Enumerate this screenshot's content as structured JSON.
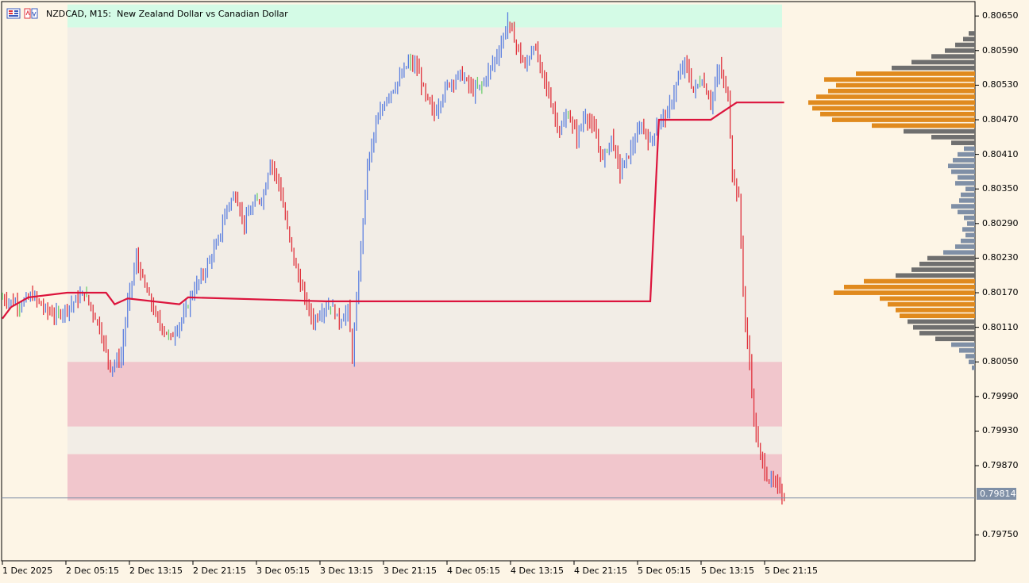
{
  "header": {
    "symbol_timeframe": "NZDCAD, M15:",
    "description": "New Zealand Dollar vs Canadian Dollar",
    "icons": [
      "market-depth-icon",
      "one-click-trading-icon"
    ]
  },
  "colors": {
    "background": "#fdf5e6",
    "bull_candle": "#5b7fe0",
    "bear_candle": "#e0323c",
    "doji_candle": "#6fcf6f",
    "poc_line": "#dc143c",
    "value_area_band": "#f2ede6",
    "demand_zone": "#d4fbe6",
    "supply_zone": "#f1c6cc",
    "profile_gray": "#6f6f6f",
    "profile_orange": "#e08a1e",
    "profile_blue": "#7f8fa6"
  },
  "price_axis": {
    "labels": [
      "0.80650",
      "0.80590",
      "0.80530",
      "0.80470",
      "0.80410",
      "0.80350",
      "0.80290",
      "0.80230",
      "0.80170",
      "0.80110",
      "0.80050",
      "0.79990",
      "0.79930",
      "0.79870",
      "0.79750"
    ],
    "current_price": "0.79814"
  },
  "time_axis": {
    "labels": [
      "1 Dec 2025",
      "2 Dec 05:15",
      "2 Dec 13:15",
      "2 Dec 21:15",
      "3 Dec 05:15",
      "3 Dec 13:15",
      "3 Dec 21:15",
      "4 Dec 05:15",
      "4 Dec 13:15",
      "4 Dec 21:15",
      "5 Dec 05:15",
      "5 Dec 13:15",
      "5 Dec 21:15"
    ]
  },
  "chart_data": {
    "type": "candlestick",
    "symbol": "NZDCAD",
    "timeframe": "M15",
    "y_range": [
      0.79705,
      0.80675
    ],
    "current_price": 0.79814,
    "price_anchors": [
      [
        0,
        0.8016
      ],
      [
        8,
        0.8015
      ],
      [
        14,
        0.80165
      ],
      [
        20,
        0.8014
      ],
      [
        25,
        0.8013
      ],
      [
        32,
        0.8015
      ],
      [
        38,
        0.8017
      ],
      [
        45,
        0.8011
      ],
      [
        50,
        0.8004
      ],
      [
        55,
        0.8006
      ],
      [
        58,
        0.8015
      ],
      [
        62,
        0.8023
      ],
      [
        66,
        0.8018
      ],
      [
        72,
        0.8012
      ],
      [
        78,
        0.8009
      ],
      [
        84,
        0.8013
      ],
      [
        88,
        0.8017
      ],
      [
        94,
        0.8021
      ],
      [
        100,
        0.8026
      ],
      [
        104,
        0.8032
      ],
      [
        108,
        0.8034
      ],
      [
        112,
        0.8029
      ],
      [
        116,
        0.8032
      ],
      [
        121,
        0.8034
      ],
      [
        124,
        0.804
      ],
      [
        128,
        0.8036
      ],
      [
        132,
        0.8028
      ],
      [
        136,
        0.8021
      ],
      [
        140,
        0.8016
      ],
      [
        144,
        0.8012
      ],
      [
        148,
        0.8014
      ],
      [
        152,
        0.8015
      ],
      [
        156,
        0.8012
      ],
      [
        160,
        0.8014
      ],
      [
        162,
        0.8006
      ],
      [
        164,
        0.8015
      ],
      [
        166,
        0.8025
      ],
      [
        169,
        0.8039
      ],
      [
        173,
        0.8046
      ],
      [
        178,
        0.8051
      ],
      [
        184,
        0.8054
      ],
      [
        188,
        0.8057
      ],
      [
        192,
        0.8056
      ],
      [
        196,
        0.8051
      ],
      [
        200,
        0.8048
      ],
      [
        206,
        0.8053
      ],
      [
        212,
        0.8055
      ],
      [
        218,
        0.8052
      ],
      [
        222,
        0.8053
      ],
      [
        226,
        0.8056
      ],
      [
        230,
        0.8059
      ],
      [
        234,
        0.8064
      ],
      [
        238,
        0.806
      ],
      [
        242,
        0.8056
      ],
      [
        246,
        0.806
      ],
      [
        250,
        0.8055
      ],
      [
        254,
        0.805
      ],
      [
        258,
        0.8045
      ],
      [
        262,
        0.8048
      ],
      [
        266,
        0.8044
      ],
      [
        270,
        0.8048
      ],
      [
        274,
        0.8045
      ],
      [
        278,
        0.804
      ],
      [
        282,
        0.8044
      ],
      [
        286,
        0.8038
      ],
      [
        290,
        0.8041
      ],
      [
        296,
        0.8046
      ],
      [
        300,
        0.8043
      ],
      [
        304,
        0.8047
      ],
      [
        308,
        0.8048
      ],
      [
        312,
        0.8053
      ],
      [
        316,
        0.8057
      ],
      [
        320,
        0.8052
      ],
      [
        324,
        0.8054
      ],
      [
        328,
        0.805
      ],
      [
        332,
        0.8056
      ],
      [
        336,
        0.8051
      ],
      [
        338,
        0.8038
      ],
      [
        341,
        0.8033
      ],
      [
        344,
        0.8011
      ],
      [
        346,
        0.8005
      ],
      [
        348,
        0.7995
      ],
      [
        350,
        0.799
      ],
      [
        354,
        0.7985
      ],
      [
        360,
        0.7983
      ],
      [
        362,
        0.79814
      ]
    ],
    "volume_profile": [
      {
        "price": 0.8004,
        "volume": 4,
        "color": "profile_blue"
      },
      {
        "price": 0.8005,
        "volume": 8,
        "color": "profile_blue"
      },
      {
        "price": 0.8006,
        "volume": 12,
        "color": "profile_blue"
      },
      {
        "price": 0.8007,
        "volume": 20,
        "color": "profile_blue"
      },
      {
        "price": 0.8008,
        "volume": 30,
        "color": "profile_blue"
      },
      {
        "price": 0.8009,
        "volume": 50,
        "color": "profile_gray"
      },
      {
        "price": 0.801,
        "volume": 70,
        "color": "profile_gray"
      },
      {
        "price": 0.8011,
        "volume": 78,
        "color": "profile_gray"
      },
      {
        "price": 0.8012,
        "volume": 85,
        "color": "profile_gray"
      },
      {
        "price": 0.8013,
        "volume": 95,
        "color": "profile_orange"
      },
      {
        "price": 0.8014,
        "volume": 100,
        "color": "profile_orange"
      },
      {
        "price": 0.8015,
        "volume": 110,
        "color": "profile_orange"
      },
      {
        "price": 0.8016,
        "volume": 120,
        "color": "profile_orange"
      },
      {
        "price": 0.8017,
        "volume": 178,
        "color": "profile_orange"
      },
      {
        "price": 0.8018,
        "volume": 165,
        "color": "profile_orange"
      },
      {
        "price": 0.8019,
        "volume": 140,
        "color": "profile_orange"
      },
      {
        "price": 0.802,
        "volume": 100,
        "color": "profile_gray"
      },
      {
        "price": 0.8021,
        "volume": 80,
        "color": "profile_gray"
      },
      {
        "price": 0.8022,
        "volume": 70,
        "color": "profile_gray"
      },
      {
        "price": 0.8023,
        "volume": 60,
        "color": "profile_gray"
      },
      {
        "price": 0.8024,
        "volume": 40,
        "color": "profile_blue"
      },
      {
        "price": 0.8025,
        "volume": 25,
        "color": "profile_blue"
      },
      {
        "price": 0.8026,
        "volume": 18,
        "color": "profile_blue"
      },
      {
        "price": 0.8027,
        "volume": 12,
        "color": "profile_blue"
      },
      {
        "price": 0.8028,
        "volume": 16,
        "color": "profile_blue"
      },
      {
        "price": 0.8029,
        "volume": 10,
        "color": "profile_blue"
      },
      {
        "price": 0.803,
        "volume": 14,
        "color": "profile_blue"
      },
      {
        "price": 0.8031,
        "volume": 22,
        "color": "profile_blue"
      },
      {
        "price": 0.8032,
        "volume": 30,
        "color": "profile_blue"
      },
      {
        "price": 0.8033,
        "volume": 20,
        "color": "profile_blue"
      },
      {
        "price": 0.8034,
        "volume": 18,
        "color": "profile_blue"
      },
      {
        "price": 0.8035,
        "volume": 12,
        "color": "profile_blue"
      },
      {
        "price": 0.8036,
        "volume": 25,
        "color": "profile_blue"
      },
      {
        "price": 0.8037,
        "volume": 22,
        "color": "profile_blue"
      },
      {
        "price": 0.8038,
        "volume": 30,
        "color": "profile_blue"
      },
      {
        "price": 0.8039,
        "volume": 34,
        "color": "profile_blue"
      },
      {
        "price": 0.804,
        "volume": 28,
        "color": "profile_blue"
      },
      {
        "price": 0.8041,
        "volume": 22,
        "color": "profile_blue"
      },
      {
        "price": 0.8042,
        "volume": 14,
        "color": "profile_blue"
      },
      {
        "price": 0.8043,
        "volume": 30,
        "color": "profile_gray"
      },
      {
        "price": 0.8044,
        "volume": 55,
        "color": "profile_gray"
      },
      {
        "price": 0.8045,
        "volume": 90,
        "color": "profile_gray"
      },
      {
        "price": 0.8046,
        "volume": 130,
        "color": "profile_orange"
      },
      {
        "price": 0.8047,
        "volume": 180,
        "color": "profile_orange"
      },
      {
        "price": 0.8048,
        "volume": 195,
        "color": "profile_orange"
      },
      {
        "price": 0.8049,
        "volume": 205,
        "color": "profile_orange"
      },
      {
        "price": 0.805,
        "volume": 210,
        "color": "profile_orange"
      },
      {
        "price": 0.8051,
        "volume": 200,
        "color": "profile_orange"
      },
      {
        "price": 0.8052,
        "volume": 185,
        "color": "profile_orange"
      },
      {
        "price": 0.8053,
        "volume": 175,
        "color": "profile_orange"
      },
      {
        "price": 0.8054,
        "volume": 190,
        "color": "profile_orange"
      },
      {
        "price": 0.8055,
        "volume": 150,
        "color": "profile_orange"
      },
      {
        "price": 0.8056,
        "volume": 105,
        "color": "profile_gray"
      },
      {
        "price": 0.8057,
        "volume": 80,
        "color": "profile_gray"
      },
      {
        "price": 0.8058,
        "volume": 55,
        "color": "profile_gray"
      },
      {
        "price": 0.8059,
        "volume": 38,
        "color": "profile_gray"
      },
      {
        "price": 0.806,
        "volume": 25,
        "color": "profile_gray"
      },
      {
        "price": 0.8061,
        "volume": 15,
        "color": "profile_gray"
      },
      {
        "price": 0.8062,
        "volume": 8,
        "color": "profile_gray"
      }
    ],
    "zones": [
      {
        "kind": "supply_zone",
        "from": 0.8063,
        "to": 0.8067
      },
      {
        "kind": "value_area",
        "from": 0.7989,
        "to": 0.8063
      },
      {
        "kind": "demand_zone",
        "from": 0.79938,
        "to": 0.8005
      },
      {
        "kind": "demand_zone",
        "from": 0.7981,
        "to": 0.7989
      }
    ],
    "poc_steps": [
      [
        0,
        0.80125
      ],
      [
        4,
        0.80145
      ],
      [
        12,
        0.80162
      ],
      [
        30,
        0.8017
      ],
      [
        48,
        0.8017
      ],
      [
        52,
        0.8015
      ],
      [
        58,
        0.8016
      ],
      [
        82,
        0.8015
      ],
      [
        86,
        0.80162
      ],
      [
        150,
        0.80155
      ],
      [
        300,
        0.80155
      ],
      [
        304,
        0.8047
      ],
      [
        328,
        0.8047
      ],
      [
        332,
        0.8048
      ],
      [
        340,
        0.805
      ],
      [
        362,
        0.805
      ]
    ]
  }
}
